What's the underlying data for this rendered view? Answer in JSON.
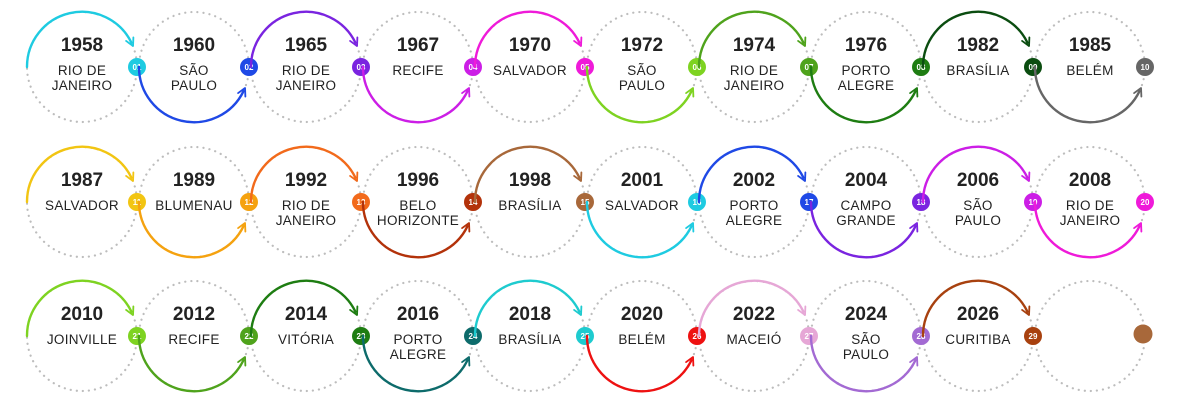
{
  "events": [
    {
      "num": "01",
      "year": "1958",
      "city": [
        "RIO DE",
        "JANEIRO"
      ],
      "color": "#1ecbe1"
    },
    {
      "num": "02",
      "year": "1960",
      "city": [
        "SÃO",
        "PAULO"
      ],
      "color": "#1f49e6"
    },
    {
      "num": "03",
      "year": "1965",
      "city": [
        "RIO DE",
        "JANEIRO"
      ],
      "color": "#7a24e0"
    },
    {
      "num": "04",
      "year": "1967",
      "city": [
        "RECIFE"
      ],
      "color": "#cc1ee6"
    },
    {
      "num": "05",
      "year": "1970",
      "city": [
        "SALVADOR"
      ],
      "color": "#ef1ad9"
    },
    {
      "num": "06",
      "year": "1972",
      "city": [
        "SÃO",
        "PAULO"
      ],
      "color": "#7ed321"
    },
    {
      "num": "07",
      "year": "1974",
      "city": [
        "RIO DE",
        "JANEIRO"
      ],
      "color": "#4fa31c"
    },
    {
      "num": "08",
      "year": "1976",
      "city": [
        "PORTO",
        "ALEGRE"
      ],
      "color": "#1e7d12"
    },
    {
      "num": "09",
      "year": "1982",
      "city": [
        "BRASÍLIA"
      ],
      "color": "#0b4d10"
    },
    {
      "num": "10",
      "year": "1985",
      "city": [
        "BELÉM"
      ],
      "color": "#666666"
    },
    {
      "num": "11",
      "year": "1987",
      "city": [
        "SALVADOR"
      ],
      "color": "#f2c512"
    },
    {
      "num": "12",
      "year": "1989",
      "city": [
        "BLUMENAU"
      ],
      "color": "#f5a20f"
    },
    {
      "num": "13",
      "year": "1992",
      "city": [
        "RIO DE",
        "JANEIRO"
      ],
      "color": "#f26a1b"
    },
    {
      "num": "14",
      "year": "1996",
      "city": [
        "BELO",
        "HORIZONTE"
      ],
      "color": "#b3320a"
    },
    {
      "num": "15",
      "year": "1998",
      "city": [
        "BRASÍLIA"
      ],
      "color": "#a8683a"
    },
    {
      "num": "16",
      "year": "2001",
      "city": [
        "SALVADOR"
      ],
      "color": "#1ecbe1"
    },
    {
      "num": "17",
      "year": "2002",
      "city": [
        "PORTO",
        "ALEGRE"
      ],
      "color": "#1f49e6"
    },
    {
      "num": "18",
      "year": "2004",
      "city": [
        "CAMPO",
        "GRANDE"
      ],
      "color": "#7a24e0"
    },
    {
      "num": "19",
      "year": "2006",
      "city": [
        "SÃO",
        "PAULO"
      ],
      "color": "#cc1ee6"
    },
    {
      "num": "20",
      "year": "2008",
      "city": [
        "RIO DE",
        "JANEIRO"
      ],
      "color": "#ef1ad9"
    },
    {
      "num": "21",
      "year": "2010",
      "city": [
        "JOINVILLE"
      ],
      "color": "#7ed321"
    },
    {
      "num": "22",
      "year": "2012",
      "city": [
        "RECIFE"
      ],
      "color": "#4fa31c"
    },
    {
      "num": "23",
      "year": "2014",
      "city": [
        "VITÓRIA"
      ],
      "color": "#1e7d12"
    },
    {
      "num": "24",
      "year": "2016",
      "city": [
        "PORTO",
        "ALEGRE"
      ],
      "color": "#0d6b6b"
    },
    {
      "num": "25",
      "year": "2018",
      "city": [
        "BRASÍLIA"
      ],
      "color": "#1ecbcf"
    },
    {
      "num": "26",
      "year": "2020",
      "city": [
        "BELÉM"
      ],
      "color": "#ee1111"
    },
    {
      "num": "27",
      "year": "2022",
      "city": [
        "MACEIÓ"
      ],
      "color": "#e6a7d6"
    },
    {
      "num": "28",
      "year": "2024",
      "city": [
        "SÃO",
        "PAULO"
      ],
      "color": "#a36ad3"
    },
    {
      "num": "29",
      "year": "2026",
      "city": [
        "CURITIBA"
      ],
      "color": "#a8410f"
    }
  ],
  "end_dot_color": "#a8683a",
  "dotted_color": "#bdbdbd"
}
